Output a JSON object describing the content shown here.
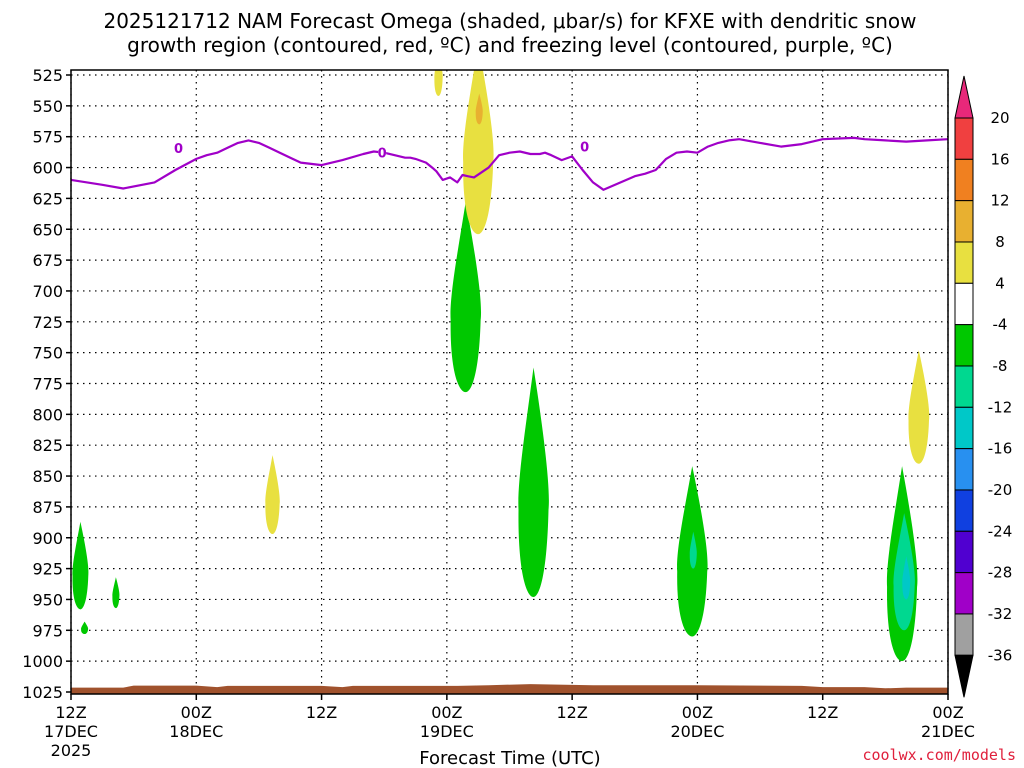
{
  "title": {
    "line1": "2025121712 NAM Forecast Omega (shaded, μbar/s) for KFXE with dendritic snow",
    "line2": "growth region (contoured, red, ºC) and freezing level (contoured, purple, ºC)"
  },
  "credit": "coolwx.com/models",
  "colors": {
    "freezing_line": "#a000c8",
    "ground": "#a0522d",
    "grid": "#000000",
    "credit": "#e0203c"
  },
  "chart_data": {
    "type": "heatmap",
    "xlabel": "Forecast Time (UTC)",
    "ylabel": "",
    "y_levels": [
      525,
      550,
      575,
      600,
      625,
      650,
      675,
      700,
      725,
      750,
      775,
      800,
      825,
      850,
      875,
      900,
      925,
      950,
      975,
      1000,
      1025
    ],
    "ylim": [
      525,
      1025
    ],
    "xlim_hours": [
      0,
      84
    ],
    "x_ticks": [
      {
        "hour": 0,
        "label": "12Z",
        "sub": "17DEC",
        "sub2": "2025"
      },
      {
        "hour": 12,
        "label": "00Z",
        "sub": "18DEC",
        "sub2": ""
      },
      {
        "hour": 24,
        "label": "12Z",
        "sub": "",
        "sub2": ""
      },
      {
        "hour": 36,
        "label": "00Z",
        "sub": "19DEC",
        "sub2": ""
      },
      {
        "hour": 48,
        "label": "12Z",
        "sub": "",
        "sub2": ""
      },
      {
        "hour": 60,
        "label": "00Z",
        "sub": "20DEC",
        "sub2": ""
      },
      {
        "hour": 72,
        "label": "12Z",
        "sub": "",
        "sub2": ""
      },
      {
        "hour": 84,
        "label": "00Z",
        "sub": "21DEC",
        "sub2": ""
      }
    ],
    "colorbar": {
      "labels": [
        "20",
        "16",
        "12",
        "8",
        "4",
        "-4",
        "-8",
        "-12",
        "-16",
        "-20",
        "-24",
        "-28",
        "-32",
        "-36"
      ],
      "colors": [
        "#e8287a",
        "#f04040",
        "#f08020",
        "#e8b030",
        "#e8e040",
        "#ffffff",
        "#00c800",
        "#00d890",
        "#00c8c8",
        "#2890f0",
        "#1040e0",
        "#5000d0",
        "#a000c8",
        "#a0a0a0",
        "#000000"
      ]
    },
    "freezing_level": {
      "name": "freezing level (0°C)",
      "label": "0",
      "hours": [
        0,
        3,
        5,
        8,
        10,
        12,
        13,
        14,
        15,
        16,
        17,
        18,
        19,
        20,
        21,
        22,
        24,
        26,
        28,
        29,
        30,
        31,
        32,
        32.5,
        33,
        34,
        34.6,
        35,
        35.6,
        36.3,
        37,
        37.5,
        38,
        38.6,
        40,
        41,
        42,
        43,
        44,
        44.9,
        45.4,
        46,
        47,
        48,
        49,
        50,
        51,
        54,
        55,
        56,
        57,
        58,
        59,
        60,
        61,
        62,
        63,
        64,
        66,
        68,
        70,
        72,
        75,
        76,
        78,
        80,
        82,
        84
      ],
      "values_hpa": [
        610,
        614,
        617,
        612,
        602,
        593,
        590,
        588,
        584,
        580,
        578,
        580,
        584,
        588,
        592,
        596,
        598,
        594,
        589,
        587,
        588,
        590,
        592,
        592,
        593,
        596,
        600,
        603,
        610,
        608,
        612,
        606,
        607,
        608,
        600,
        590,
        588,
        587,
        589,
        589,
        588,
        590,
        594,
        591,
        602,
        612,
        618,
        607,
        605,
        602,
        593,
        588,
        587,
        588,
        583,
        580,
        578,
        577,
        580,
        583,
        581,
        577,
        576,
        577,
        578,
        579,
        578,
        577
      ]
    },
    "omega_regions": [
      {
        "name": "green-0h",
        "value": -6,
        "center_hour": 0.9,
        "top_hpa": 887,
        "bottom_hpa": 958
      },
      {
        "name": "green-1h",
        "value": -6,
        "center_hour": 1.3,
        "top_hpa": 968,
        "bottom_hpa": 978
      },
      {
        "name": "green-4h",
        "value": -6,
        "center_hour": 4.3,
        "top_hpa": 932,
        "bottom_hpa": 957
      },
      {
        "name": "yellow-19h",
        "value": 6,
        "center_hour": 19.3,
        "top_hpa": 833,
        "bottom_hpa": 897
      },
      {
        "name": "yellow-35h",
        "value": 6,
        "center_hour": 35.2,
        "top_hpa": 505,
        "bottom_hpa": 542
      },
      {
        "name": "green-38h",
        "value": -6,
        "center_hour": 37.8,
        "top_hpa": 628,
        "bottom_hpa": 782
      },
      {
        "name": "yellow-39h",
        "value": 6,
        "center_hour": 39.0,
        "top_hpa": 500,
        "bottom_hpa": 654
      },
      {
        "name": "orange-39h",
        "value": 9,
        "center_hour": 39.1,
        "top_hpa": 540,
        "bottom_hpa": 565
      },
      {
        "name": "green-44h",
        "value": -6,
        "center_hour": 44.3,
        "top_hpa": 762,
        "bottom_hpa": 948
      },
      {
        "name": "green-59h",
        "value": -6,
        "center_hour": 59.5,
        "top_hpa": 842,
        "bottom_hpa": 980
      },
      {
        "name": "teal-59h",
        "value": -9,
        "center_hour": 59.6,
        "top_hpa": 895,
        "bottom_hpa": 925
      },
      {
        "name": "yellow-81h",
        "value": 6,
        "center_hour": 81.2,
        "top_hpa": 748,
        "bottom_hpa": 840
      },
      {
        "name": "green-79h",
        "value": -6,
        "center_hour": 79.6,
        "top_hpa": 842,
        "bottom_hpa": 1000
      },
      {
        "name": "teal-79h",
        "value": -10,
        "center_hour": 79.8,
        "top_hpa": 880,
        "bottom_hpa": 975
      },
      {
        "name": "cyan-80h",
        "value": -13,
        "center_hour": 80.0,
        "top_hpa": 915,
        "bottom_hpa": 950
      }
    ]
  }
}
